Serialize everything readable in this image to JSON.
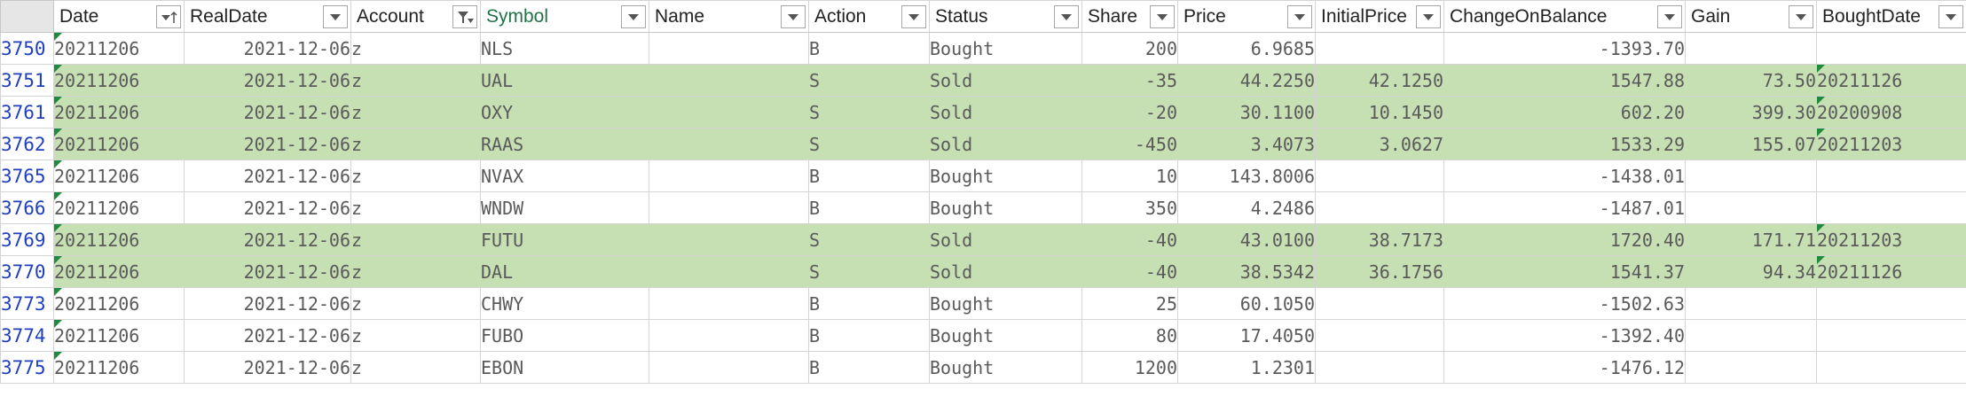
{
  "columns": [
    "Date",
    "RealDate",
    "Account",
    "Symbol",
    "Name",
    "Action",
    "Status",
    "Share",
    "Price",
    "InitialPrice",
    "ChangeOnBalance",
    "Gain",
    "BoughtDate"
  ],
  "rows": [
    {
      "rn": "3750",
      "date": "20211206",
      "real": "2021-12-06",
      "acct": "z",
      "sym": "NLS",
      "name": "",
      "action": "B",
      "status": "Bought",
      "share": "200",
      "price": "6.9685",
      "init": "",
      "cob": "-1393.70",
      "gain": "",
      "bd": "",
      "sold": false
    },
    {
      "rn": "3751",
      "date": "20211206",
      "real": "2021-12-06",
      "acct": "z",
      "sym": "UAL",
      "name": "",
      "action": "S",
      "status": "Sold",
      "share": "-35",
      "price": "44.2250",
      "init": "42.1250",
      "cob": "1547.88",
      "gain": "73.50",
      "bd": "20211126",
      "sold": true
    },
    {
      "rn": "3761",
      "date": "20211206",
      "real": "2021-12-06",
      "acct": "z",
      "sym": "OXY",
      "name": "",
      "action": "S",
      "status": "Sold",
      "share": "-20",
      "price": "30.1100",
      "init": "10.1450",
      "cob": "602.20",
      "gain": "399.30",
      "bd": "20200908",
      "sold": true
    },
    {
      "rn": "3762",
      "date": "20211206",
      "real": "2021-12-06",
      "acct": "z",
      "sym": "RAAS",
      "name": "",
      "action": "S",
      "status": "Sold",
      "share": "-450",
      "price": "3.4073",
      "init": "3.0627",
      "cob": "1533.29",
      "gain": "155.07",
      "bd": "20211203",
      "sold": true
    },
    {
      "rn": "3765",
      "date": "20211206",
      "real": "2021-12-06",
      "acct": "z",
      "sym": "NVAX",
      "name": "",
      "action": "B",
      "status": "Bought",
      "share": "10",
      "price": "143.8006",
      "init": "",
      "cob": "-1438.01",
      "gain": "",
      "bd": "",
      "sold": false
    },
    {
      "rn": "3766",
      "date": "20211206",
      "real": "2021-12-06",
      "acct": "z",
      "sym": "WNDW",
      "name": "",
      "action": "B",
      "status": "Bought",
      "share": "350",
      "price": "4.2486",
      "init": "",
      "cob": "-1487.01",
      "gain": "",
      "bd": "",
      "sold": false
    },
    {
      "rn": "3769",
      "date": "20211206",
      "real": "2021-12-06",
      "acct": "z",
      "sym": "FUTU",
      "name": "",
      "action": "S",
      "status": "Sold",
      "share": "-40",
      "price": "43.0100",
      "init": "38.7173",
      "cob": "1720.40",
      "gain": "171.71",
      "bd": "20211203",
      "sold": true
    },
    {
      "rn": "3770",
      "date": "20211206",
      "real": "2021-12-06",
      "acct": "z",
      "sym": "DAL",
      "name": "",
      "action": "S",
      "status": "Sold",
      "share": "-40",
      "price": "38.5342",
      "init": "36.1756",
      "cob": "1541.37",
      "gain": "94.34",
      "bd": "20211126",
      "sold": true
    },
    {
      "rn": "3773",
      "date": "20211206",
      "real": "2021-12-06",
      "acct": "z",
      "sym": "CHWY",
      "name": "",
      "action": "B",
      "status": "Bought",
      "share": "25",
      "price": "60.1050",
      "init": "",
      "cob": "-1502.63",
      "gain": "",
      "bd": "",
      "sold": false
    },
    {
      "rn": "3774",
      "date": "20211206",
      "real": "2021-12-06",
      "acct": "z",
      "sym": "FUBO",
      "name": "",
      "action": "B",
      "status": "Bought",
      "share": "80",
      "price": "17.4050",
      "init": "",
      "cob": "-1392.40",
      "gain": "",
      "bd": "",
      "sold": false
    },
    {
      "rn": "3775",
      "date": "20211206",
      "real": "2021-12-06",
      "acct": "z",
      "sym": "EBON",
      "name": "",
      "action": "B",
      "status": "Bought",
      "share": "1200",
      "price": "1.2301",
      "init": "",
      "cob": "-1476.12",
      "gain": "",
      "bd": "",
      "sold": false
    }
  ],
  "colors": {
    "sold_fill": "#c6e0b4",
    "accent": "#217346",
    "row_number": "#1f3fbf"
  }
}
